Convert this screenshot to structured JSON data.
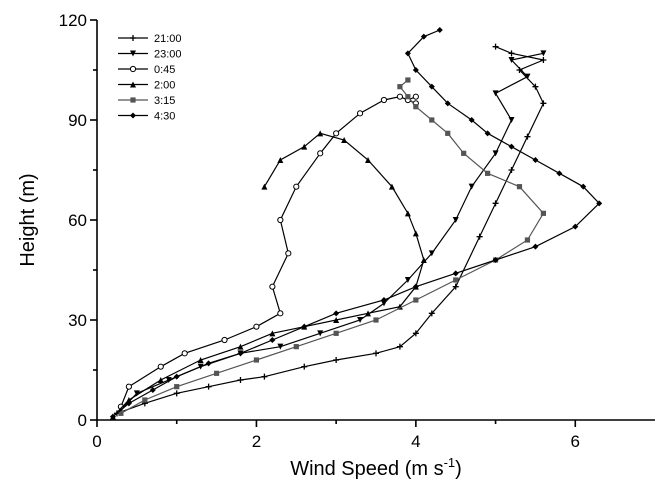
{
  "chart_data": {
    "type": "line",
    "xlabel": "Wind Speed (m s",
    "xlabel_sup": "-1",
    "xlabel_end": ")",
    "ylabel": "Height (m)",
    "xlim": [
      0,
      7
    ],
    "ylim": [
      0,
      120
    ],
    "xticks": [
      0,
      2,
      4,
      6
    ],
    "yticks": [
      0,
      30,
      60,
      90,
      120
    ],
    "legend_position": "top-left",
    "series": [
      {
        "name": "21:00",
        "marker": "plus",
        "color": "#000000",
        "x": [
          0.25,
          0.6,
          1.0,
          1.4,
          1.8,
          2.1,
          2.6,
          3.0,
          3.5,
          3.8,
          4.0,
          4.2,
          4.5,
          4.8,
          5.0,
          5.2,
          5.4,
          5.6,
          5.5,
          5.3,
          5.6,
          5.2,
          5.0
        ],
        "y": [
          2,
          5,
          8,
          10,
          12,
          13,
          16,
          18,
          20,
          22,
          26,
          32,
          40,
          55,
          65,
          75,
          85,
          95,
          100,
          105,
          108,
          110,
          112
        ]
      },
      {
        "name": "23:00",
        "marker": "triangle-down",
        "color": "#000000",
        "x": [
          0.3,
          0.5,
          0.9,
          1.3,
          1.8,
          2.3,
          2.8,
          3.3,
          3.6,
          3.9,
          4.2,
          4.5,
          4.7,
          5.0,
          5.2,
          5.0,
          5.4,
          5.2,
          5.6
        ],
        "y": [
          3,
          8,
          12,
          16,
          20,
          22,
          26,
          30,
          35,
          42,
          50,
          60,
          70,
          80,
          90,
          98,
          103,
          108,
          110
        ]
      },
      {
        "name": "0:45",
        "marker": "circle",
        "color": "#000000",
        "x": [
          0.3,
          0.4,
          0.8,
          1.1,
          1.6,
          2.0,
          2.3,
          2.2,
          2.4,
          2.3,
          2.5,
          2.8,
          3.0,
          3.3,
          3.6,
          3.8,
          4.0,
          3.9,
          4.0
        ],
        "y": [
          4,
          10,
          16,
          20,
          24,
          28,
          32,
          40,
          50,
          60,
          70,
          80,
          86,
          92,
          96,
          97,
          95,
          96,
          97
        ]
      },
      {
        "name": "2:00",
        "marker": "triangle-up",
        "color": "#000000",
        "x": [
          0.2,
          0.4,
          0.8,
          1.3,
          1.8,
          2.2,
          2.6,
          3.0,
          3.4,
          3.8,
          4.0,
          4.1,
          4.0,
          3.9,
          3.7,
          3.4,
          3.1,
          2.8,
          2.6,
          2.3,
          2.1
        ],
        "y": [
          1,
          6,
          12,
          18,
          22,
          26,
          28,
          30,
          32,
          34,
          40,
          48,
          56,
          62,
          70,
          78,
          84,
          86,
          82,
          78,
          70
        ]
      },
      {
        "name": "3:15",
        "marker": "square",
        "color": "#555555",
        "x": [
          0.3,
          0.6,
          1.0,
          1.5,
          2.0,
          2.5,
          3.0,
          3.5,
          4.0,
          4.5,
          5.0,
          5.4,
          5.6,
          5.3,
          4.9,
          4.6,
          4.4,
          4.2,
          4.0,
          3.9,
          3.8,
          3.9
        ],
        "y": [
          2,
          6,
          10,
          14,
          18,
          22,
          26,
          30,
          36,
          42,
          48,
          54,
          62,
          70,
          74,
          80,
          86,
          90,
          94,
          97,
          100,
          102
        ]
      },
      {
        "name": "4:30",
        "marker": "diamond",
        "color": "#000000",
        "x": [
          0.2,
          0.4,
          0.7,
          1.0,
          1.4,
          1.8,
          2.2,
          2.6,
          3.0,
          3.6,
          4.0,
          4.5,
          5.0,
          5.5,
          6.0,
          6.3,
          6.1,
          5.8,
          5.5,
          5.2,
          4.9,
          4.7,
          4.4,
          4.2,
          4.0,
          3.9,
          4.1,
          4.3
        ],
        "y": [
          1,
          5,
          9,
          13,
          17,
          20,
          24,
          28,
          32,
          36,
          40,
          44,
          48,
          52,
          58,
          65,
          70,
          74,
          78,
          82,
          86,
          90,
          95,
          100,
          105,
          110,
          115,
          117
        ]
      }
    ]
  }
}
